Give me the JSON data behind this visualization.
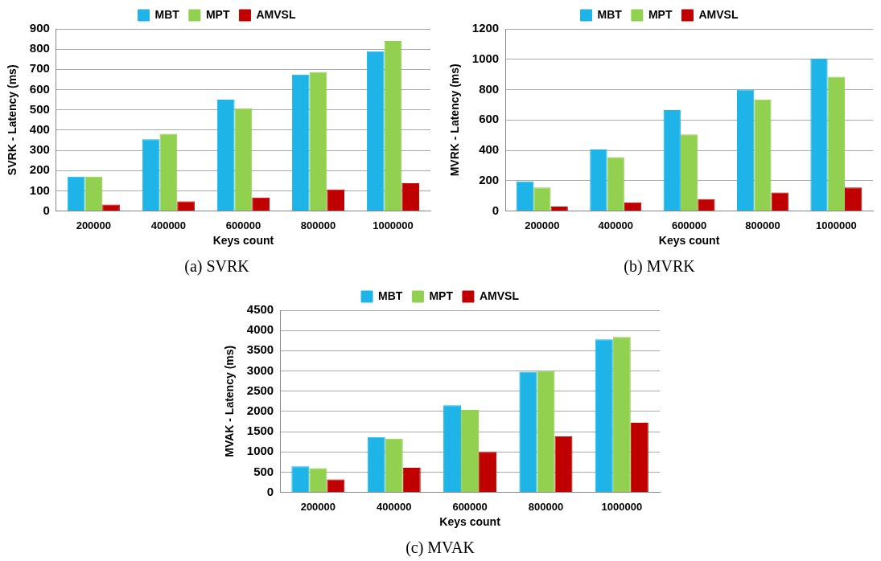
{
  "chart_data": [
    {
      "type": "bar",
      "title": "(a) SVRK",
      "xlabel": "Keys count",
      "ylabel": "SVRK - Latency (ms)",
      "categories": [
        "200000",
        "400000",
        "600000",
        "800000",
        "1000000"
      ],
      "series": [
        {
          "name": "MBT",
          "color": "#1fb4e8",
          "values": [
            170,
            355,
            550,
            675,
            790
          ]
        },
        {
          "name": "MPT",
          "color": "#92d050",
          "values": [
            170,
            382,
            508,
            688,
            840
          ]
        },
        {
          "name": "AMVSL",
          "color": "#c00000",
          "values": [
            32,
            48,
            67,
            107,
            137
          ]
        }
      ],
      "ylim": [
        0,
        900
      ],
      "yticks": [
        0,
        100,
        200,
        300,
        400,
        500,
        600,
        700,
        800,
        900
      ],
      "grid": "y",
      "legend": "top"
    },
    {
      "type": "bar",
      "title": "(b) MVRK",
      "xlabel": "Keys count",
      "ylabel": "MVRK - Latency (ms)",
      "categories": [
        "200000",
        "400000",
        "600000",
        "800000",
        "1000000"
      ],
      "series": [
        {
          "name": "MBT",
          "color": "#1fb4e8",
          "values": [
            195,
            405,
            665,
            800,
            1005
          ]
        },
        {
          "name": "MPT",
          "color": "#92d050",
          "values": [
            155,
            355,
            505,
            735,
            885
          ]
        },
        {
          "name": "AMVSL",
          "color": "#c00000",
          "values": [
            30,
            58,
            78,
            122,
            155
          ]
        }
      ],
      "ylim": [
        0,
        1200
      ],
      "yticks": [
        0,
        200,
        400,
        600,
        800,
        1000,
        1200
      ],
      "grid": "y",
      "legend": "top"
    },
    {
      "type": "bar",
      "title": "(c) MVAK",
      "xlabel": "Keys count",
      "ylabel": "MVAK - Latency (ms)",
      "categories": [
        "200000",
        "400000",
        "600000",
        "800000",
        "1000000"
      ],
      "series": [
        {
          "name": "MBT",
          "color": "#1fb4e8",
          "values": [
            640,
            1365,
            2150,
            2980,
            3780
          ]
        },
        {
          "name": "MPT",
          "color": "#92d050",
          "values": [
            600,
            1330,
            2040,
            3000,
            3840
          ]
        },
        {
          "name": "AMVSL",
          "color": "#c00000",
          "values": [
            320,
            610,
            1000,
            1380,
            1720
          ]
        }
      ],
      "ylim": [
        0,
        4500
      ],
      "yticks": [
        0,
        500,
        1000,
        1500,
        2000,
        2500,
        3000,
        3500,
        4000,
        4500
      ],
      "grid": "y",
      "legend": "top"
    }
  ]
}
